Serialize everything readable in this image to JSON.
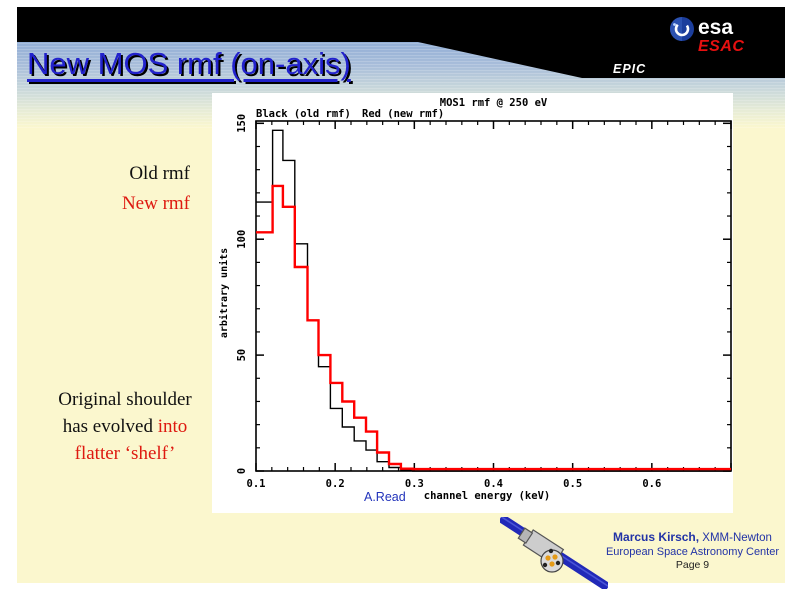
{
  "slide": {
    "title": "New MOS rmf (on-axis)",
    "banner": {
      "epic_label": "EPIC",
      "esa_logo_text": "esa",
      "esac_label": "ESAC"
    },
    "annotations": {
      "old_rmf_label": "Old rmf",
      "new_rmf_label": "New rmf",
      "note_line1": "Original shoulder",
      "note_line2_black": "has evolved ",
      "note_line2_red": "into",
      "note_line3_red": "flatter ‘shelf’",
      "chart_credit": "A.Read"
    },
    "footer": {
      "author": "Marcus Kirsch,",
      "mission": " XMM-Newton",
      "organization": "European Space Astronomy Center",
      "page_label": "Page 9"
    },
    "colors": {
      "slide_background": "#FBF7CE",
      "title_blue": "#2222CC",
      "accent_red": "#DE1910",
      "footer_blue": "#2233A6",
      "banner_black": "#000000",
      "gradient_top_blue": "#93AFD6",
      "chart_red": "#FF0000"
    }
  },
  "chart_data": {
    "type": "line",
    "subtype": "step-histogram",
    "title": "MOS1 rmf @ 250 eV",
    "legend": {
      "black_entry": "Black (old rmf)",
      "red_entry": "Red (new rmf)"
    },
    "legend_position": "top-left above plot box",
    "xlabel": "channel energy (keV)",
    "ylabel": "arbitrary units",
    "xlim": [
      0.1,
      0.7
    ],
    "ylim": [
      0,
      151
    ],
    "grid": false,
    "x_major_ticks": [
      0.1,
      0.2,
      0.3,
      0.4,
      0.5,
      0.6,
      0.7
    ],
    "x_tick_labels": [
      "0.1",
      "0.2",
      "0.3",
      "0.4",
      "0.5",
      "0.6"
    ],
    "x_minor_step": 0.02,
    "y_major_ticks": [
      0,
      50,
      100,
      150
    ],
    "y_tick_labels": [
      "0",
      "50",
      "100",
      "150"
    ],
    "y_minor_step": 10,
    "bin_edges_kev": [
      0.1,
      0.121,
      0.134,
      0.149,
      0.165,
      0.179,
      0.194,
      0.209,
      0.224,
      0.239,
      0.253,
      0.268,
      0.283,
      0.298
    ],
    "series": [
      {
        "name": "old rmf",
        "color": "#000000",
        "line_width": 1.4,
        "values": [
          116,
          147,
          134,
          98,
          65,
          45,
          27,
          19,
          13,
          9,
          4,
          1.5,
          0.5
        ],
        "tail_value": 0
      },
      {
        "name": "new rmf",
        "color": "#FF0000",
        "line_width": 2.4,
        "values": [
          103,
          123,
          114,
          88,
          65,
          50,
          38,
          30,
          23,
          17,
          8,
          3,
          1
        ],
        "tail_value": 0.8
      }
    ]
  }
}
